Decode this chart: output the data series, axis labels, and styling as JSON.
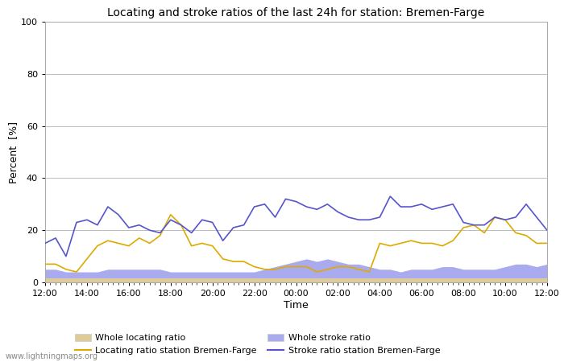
{
  "title": "Locating and stroke ratios of the last 24h for station: Bremen-Farge",
  "xlabel": "Time",
  "ylabel": "Percent  [%]",
  "ylim": [
    0,
    100
  ],
  "yticks": [
    0,
    20,
    40,
    60,
    80,
    100
  ],
  "watermark": "www.lightningmaps.org",
  "x_labels": [
    "12:00",
    "14:00",
    "16:00",
    "18:00",
    "20:00",
    "22:00",
    "00:00",
    "02:00",
    "04:00",
    "06:00",
    "08:00",
    "10:00",
    "12:00"
  ],
  "stroke_ratio_station": [
    15,
    17,
    10,
    23,
    24,
    22,
    29,
    26,
    21,
    22,
    20,
    19,
    24,
    22,
    19,
    24,
    23,
    16,
    21,
    22,
    29,
    30,
    25,
    32,
    31,
    29,
    28,
    30,
    27,
    25,
    24,
    24,
    25,
    33,
    29,
    29,
    30,
    28,
    29,
    30,
    23,
    22,
    22,
    25,
    24,
    25,
    30,
    25,
    20
  ],
  "locating_ratio_station": [
    7,
    7,
    5,
    4,
    9,
    14,
    16,
    15,
    14,
    17,
    15,
    18,
    26,
    22,
    14,
    15,
    14,
    9,
    8,
    8,
    6,
    5,
    5,
    6,
    6,
    6,
    4,
    5,
    6,
    6,
    5,
    4,
    15,
    14,
    15,
    16,
    15,
    15,
    14,
    16,
    21,
    22,
    19,
    25,
    24,
    19,
    18,
    15,
    15
  ],
  "whole_stroke_ratio": [
    5,
    5,
    4,
    4,
    4,
    4,
    5,
    5,
    5,
    5,
    5,
    5,
    4,
    4,
    4,
    4,
    4,
    4,
    4,
    4,
    4,
    5,
    6,
    7,
    8,
    9,
    8,
    9,
    8,
    7,
    7,
    6,
    5,
    5,
    4,
    5,
    5,
    5,
    6,
    6,
    5,
    5,
    5,
    5,
    6,
    7,
    7,
    6,
    7
  ],
  "whole_locating_ratio": [
    1.5,
    1.5,
    1.5,
    1.5,
    1.5,
    1.5,
    1.5,
    1.5,
    1.5,
    1.5,
    1.5,
    1.5,
    1.5,
    1.5,
    1.5,
    1.5,
    1.5,
    1.5,
    1.5,
    1.5,
    1.5,
    1.5,
    1.5,
    1.5,
    1.5,
    1.5,
    1.5,
    1.5,
    1.5,
    1.5,
    1.5,
    1.5,
    1.5,
    1.5,
    1.5,
    1.5,
    1.5,
    1.5,
    1.5,
    1.5,
    1.5,
    1.5,
    1.5,
    1.5,
    1.5,
    1.5,
    1.5,
    1.5,
    1.5
  ],
  "color_stroke_station": "#5555cc",
  "color_locating_station": "#ddaa00",
  "color_whole_stroke": "#aaaaee",
  "color_whole_locating": "#ddcc99",
  "bg_color": "#ffffff",
  "plot_bg_color": "#ffffff",
  "grid_color": "#bbbbbb",
  "title_fontsize": 10
}
